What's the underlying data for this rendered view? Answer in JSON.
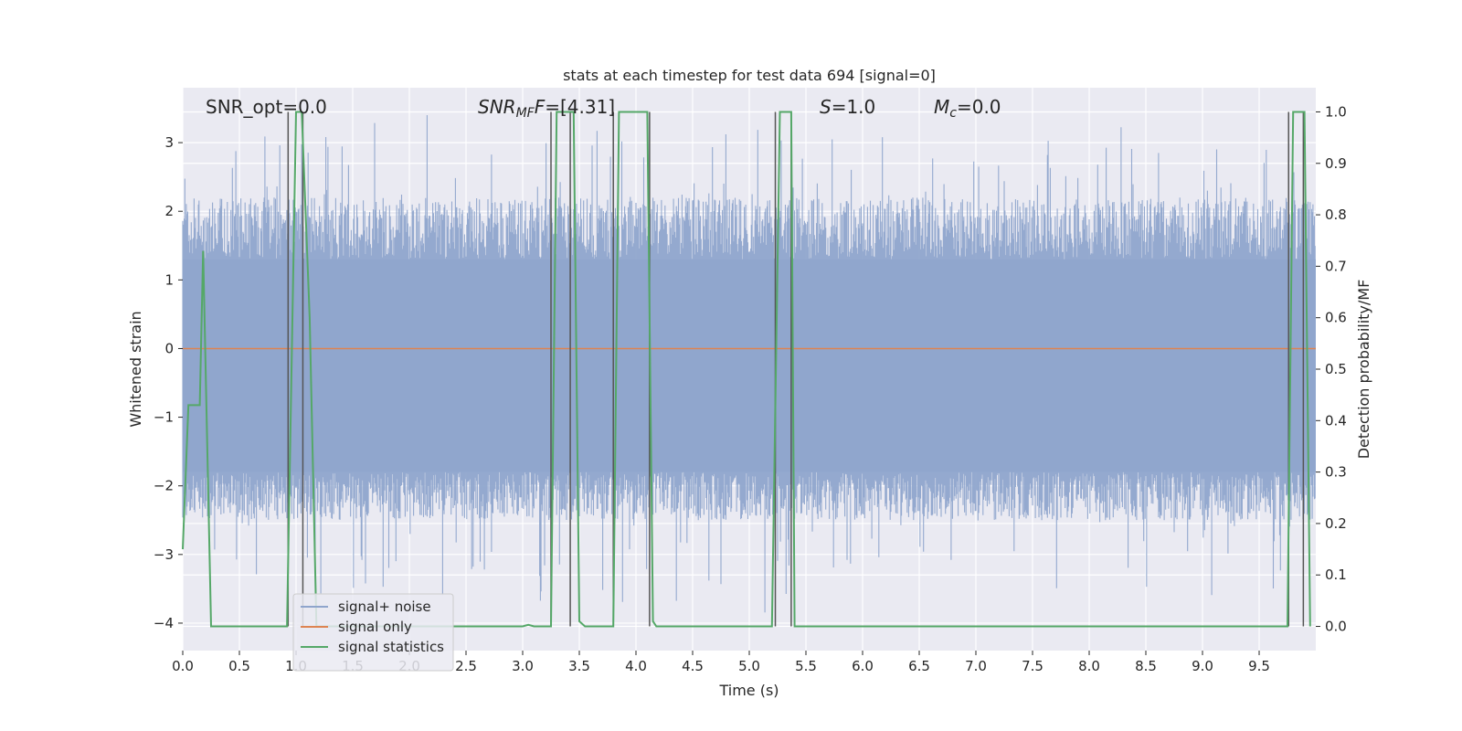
{
  "chart_data": {
    "type": "line",
    "title": "stats at each timestep for test data 694 [signal=0]",
    "xlabel": "Time (s)",
    "ylabel": "Whitened strain",
    "y2label": "Detection probability/MF",
    "xlim": [
      0.0,
      10.0
    ],
    "ylim": [
      -4.4,
      3.8
    ],
    "y2lim": [
      -0.047,
      1.047
    ],
    "xticks": [
      "0.0",
      "0.5",
      "1.0",
      "1.5",
      "2.0",
      "2.5",
      "3.0",
      "3.5",
      "4.0",
      "4.5",
      "5.0",
      "5.5",
      "6.0",
      "6.5",
      "7.0",
      "7.5",
      "8.0",
      "8.5",
      "9.0",
      "9.5"
    ],
    "yticks": [
      "3",
      "2",
      "1",
      "0",
      "−1",
      "−2",
      "−3",
      "−4"
    ],
    "y2ticks": [
      "1.0",
      "0.9",
      "0.8",
      "0.7",
      "0.6",
      "0.5",
      "0.4",
      "0.3",
      "0.2",
      "0.1",
      "0.0"
    ],
    "grid": true,
    "legend_position": "lower-left",
    "legend": [
      "signal+ noise",
      "signal only",
      "signal statistics"
    ],
    "annotations": {
      "snr_opt": "SNR_opt=0.0",
      "snr_mf_base": "SNR",
      "snr_mf_sub": "MF",
      "snr_mf_rest": "=[4.31]",
      "s_base": "S",
      "s_rest": "=1.0",
      "mc_base": "M",
      "mc_sub": "c",
      "mc_rest": "=0.0"
    },
    "series": [
      {
        "name": "signal+ noise",
        "axis": "left",
        "color": "#8fa5cc",
        "description_envelope_typical": [
          -1.8,
          1.3
        ],
        "peak_range": [
          -4.0,
          3.4
        ]
      },
      {
        "name": "signal only",
        "axis": "left",
        "color": "#dd8452",
        "x": [
          0.0,
          10.0
        ],
        "y": [
          0.0,
          0.0
        ]
      },
      {
        "name": "signal statistics",
        "axis": "right",
        "color": "#55a868",
        "x": [
          0.0,
          0.05,
          0.1,
          0.15,
          0.18,
          0.25,
          0.3,
          0.4,
          0.6,
          0.8,
          0.92,
          1.0,
          1.05,
          1.12,
          1.18,
          1.25,
          1.5,
          2.0,
          2.5,
          3.0,
          3.05,
          3.1,
          3.25,
          3.3,
          3.35,
          3.45,
          3.5,
          3.55,
          3.6,
          3.8,
          3.85,
          3.9,
          4.1,
          4.15,
          4.18,
          4.2,
          4.5,
          5.0,
          5.2,
          5.27,
          5.3,
          5.37,
          5.4,
          5.45,
          5.5,
          6.0,
          7.0,
          8.0,
          9.0,
          9.5,
          9.75,
          9.8,
          9.85,
          9.9,
          9.95
        ],
        "y": [
          0.15,
          0.43,
          0.43,
          0.43,
          0.73,
          0.0,
          0.0,
          0.0,
          0.0,
          0.0,
          0.0,
          1.0,
          1.0,
          0.6,
          0.0,
          0.0,
          0.0,
          0.0,
          0.0,
          0.0,
          0.003,
          0.0,
          0.0,
          1.0,
          1.0,
          1.0,
          0.01,
          0.0,
          0.0,
          0.0,
          1.0,
          1.0,
          1.0,
          0.01,
          0.0,
          0.0,
          0.0,
          0.0,
          0.0,
          1.0,
          1.0,
          1.0,
          0.0,
          0.0,
          0.0,
          0.0,
          0.0,
          0.0,
          0.0,
          0.0,
          0.0,
          1.0,
          1.0,
          1.0,
          0.0
        ]
      },
      {
        "name": "vertical markers",
        "axis": "right",
        "color": "#555555",
        "x": [
          0.93,
          1.06,
          3.25,
          3.42,
          3.8,
          4.12,
          5.23,
          5.37,
          9.76,
          9.89
        ]
      }
    ]
  }
}
